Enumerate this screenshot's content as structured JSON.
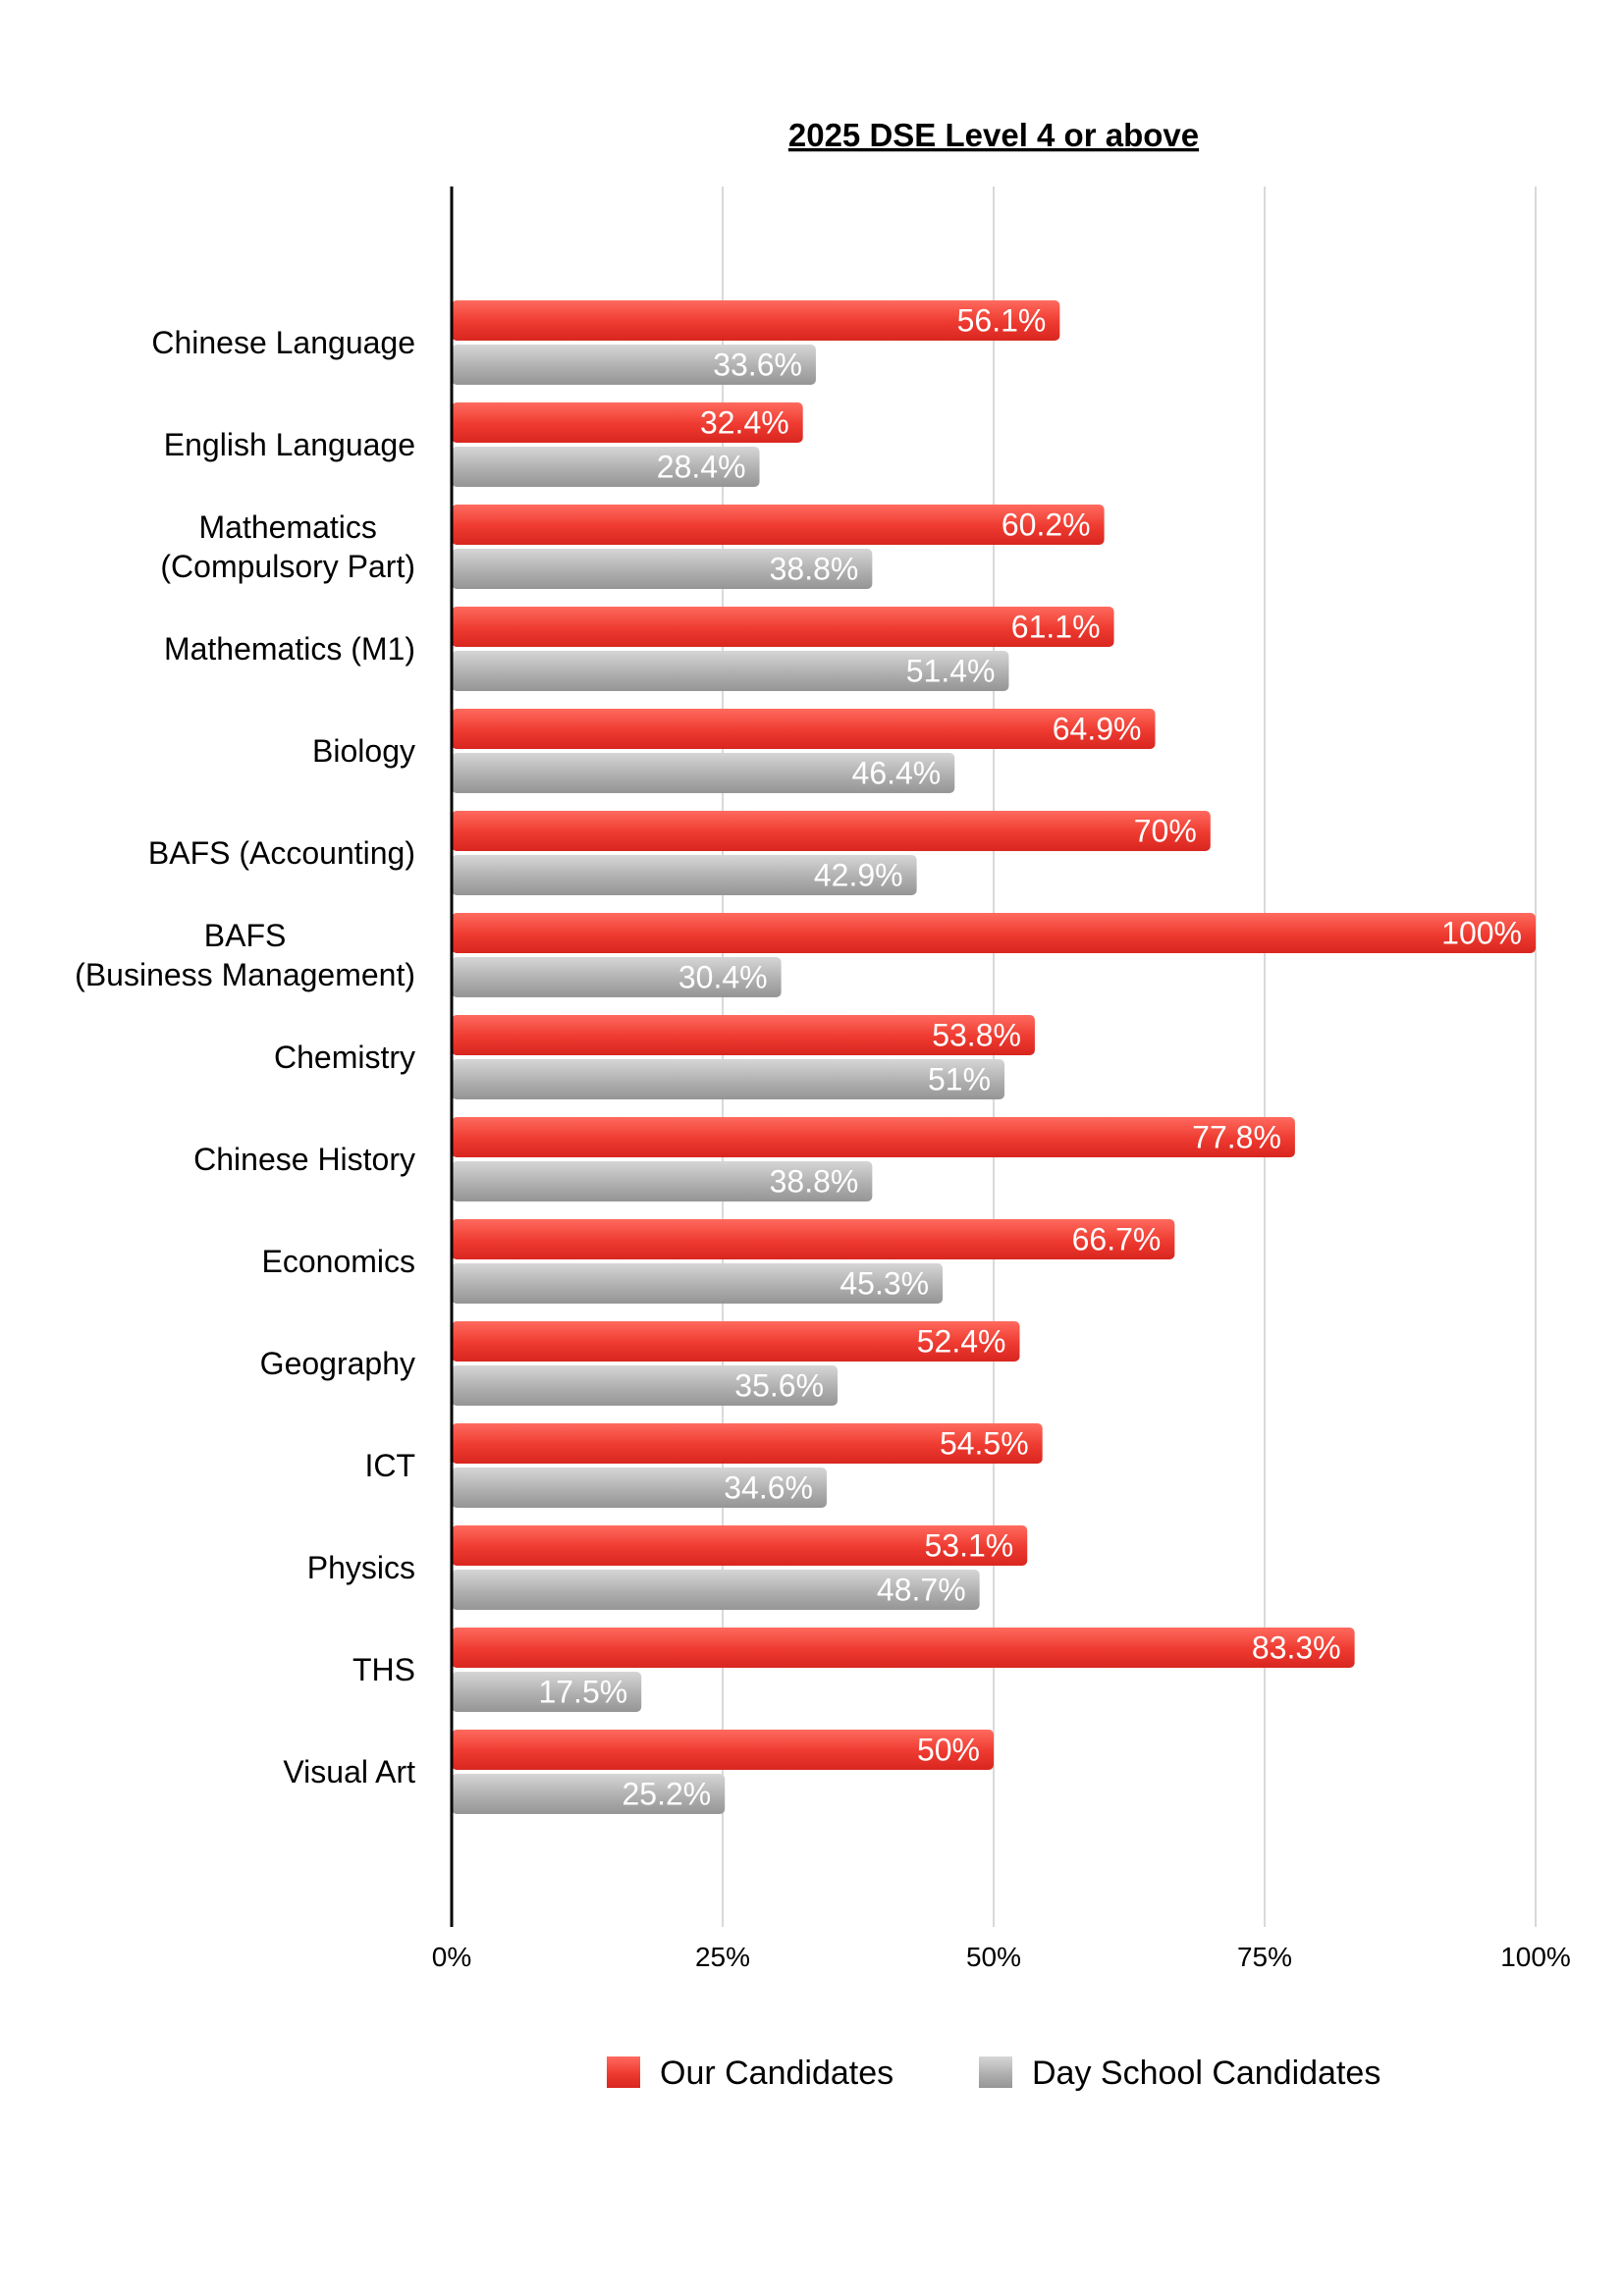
{
  "chart_data": {
    "type": "bar",
    "orientation": "horizontal",
    "title": "2025 DSE Level 4 or above",
    "xlabel": "",
    "ylabel": "",
    "xlim": [
      0,
      100
    ],
    "x_ticks": [
      "0%",
      "25%",
      "50%",
      "75%",
      "100%"
    ],
    "x_tick_values": [
      0,
      25,
      50,
      75,
      100
    ],
    "grid": true,
    "legend_position": "bottom",
    "categories": [
      [
        "Chinese Language"
      ],
      [
        "English Language"
      ],
      [
        "Mathematics",
        "(Compulsory Part)"
      ],
      [
        "Mathematics (M1)"
      ],
      [
        "Biology"
      ],
      [
        "BAFS (Accounting)"
      ],
      [
        "BAFS",
        "(Business Management)"
      ],
      [
        "Chemistry"
      ],
      [
        "Chinese History"
      ],
      [
        "Economics"
      ],
      [
        "Geography"
      ],
      [
        "ICT"
      ],
      [
        "Physics"
      ],
      [
        "THS"
      ],
      [
        "Visual Art"
      ]
    ],
    "series": [
      {
        "name": "Our Candidates",
        "color": "#e8322b",
        "values": [
          56.1,
          32.4,
          60.2,
          61.1,
          64.9,
          70,
          100,
          53.8,
          77.8,
          66.7,
          52.4,
          54.5,
          53.1,
          83.3,
          50
        ],
        "labels": [
          "56.1%",
          "32.4%",
          "60.2%",
          "61.1%",
          "64.9%",
          "70%",
          "100%",
          "53.8%",
          "77.8%",
          "66.7%",
          "52.4%",
          "54.5%",
          "53.1%",
          "83.3%",
          "50%"
        ]
      },
      {
        "name": "Day School Candidates",
        "color": "#a9a9a9",
        "values": [
          33.6,
          28.4,
          38.8,
          51.4,
          46.4,
          42.9,
          30.4,
          51,
          38.8,
          45.3,
          35.6,
          34.6,
          48.7,
          17.5,
          25.2
        ],
        "labels": [
          "33.6%",
          "28.4%",
          "38.8%",
          "51.4%",
          "46.4%",
          "42.9%",
          "30.4%",
          "51%",
          "38.8%",
          "45.3%",
          "35.6%",
          "34.6%",
          "48.7%",
          "17.5%",
          "25.2%"
        ]
      }
    ]
  }
}
